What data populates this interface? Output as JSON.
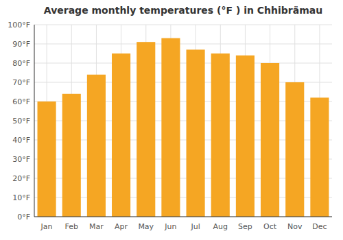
{
  "chart_data": {
    "type": "bar",
    "title": "Average monthly temperatures (°F ) in Chhibrämau",
    "categories": [
      "Jan",
      "Feb",
      "Mar",
      "Apr",
      "May",
      "Jun",
      "Jul",
      "Aug",
      "Sep",
      "Oct",
      "Nov",
      "Dec"
    ],
    "values": [
      60,
      64,
      74,
      85,
      91,
      93,
      87,
      85,
      84,
      80,
      70,
      62
    ],
    "color": "#F5A623",
    "ylim": [
      0,
      100
    ],
    "yticks": [
      {
        "value": 0,
        "label": "0°F"
      },
      {
        "value": 10,
        "label": "10°F"
      },
      {
        "value": 20,
        "label": "20°F"
      },
      {
        "value": 30,
        "label": "30°F"
      },
      {
        "value": 40,
        "label": "40°F"
      },
      {
        "value": 50,
        "label": "50°F"
      },
      {
        "value": 60,
        "label": "60°F"
      },
      {
        "value": 70,
        "label": "70°F"
      },
      {
        "value": 80,
        "label": "80°F"
      },
      {
        "value": 90,
        "label": "90°F"
      },
      {
        "value": 100,
        "label": "100°F"
      }
    ],
    "grid": true
  }
}
